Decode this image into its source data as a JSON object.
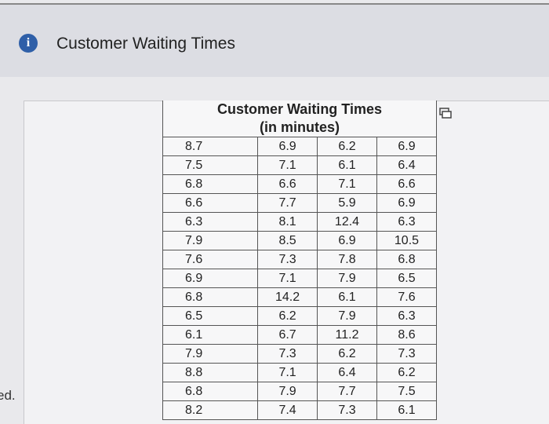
{
  "header": {
    "icon": "i",
    "title": "Customer Waiting Times"
  },
  "side_text": "ed.",
  "table": {
    "title": "Customer Waiting Times",
    "subtitle": "(in minutes)",
    "rows": [
      [
        8.7,
        6.9,
        6.2,
        6.9
      ],
      [
        7.5,
        7.1,
        6.1,
        6.4
      ],
      [
        6.8,
        6.6,
        7.1,
        6.6
      ],
      [
        6.6,
        7.7,
        5.9,
        6.9
      ],
      [
        6.3,
        8.1,
        12.4,
        6.3
      ],
      [
        7.9,
        8.5,
        6.9,
        10.5
      ],
      [
        7.6,
        7.3,
        7.8,
        6.8
      ],
      [
        6.9,
        7.1,
        7.9,
        6.5
      ],
      [
        6.8,
        14.2,
        6.1,
        7.6
      ],
      [
        6.5,
        6.2,
        7.9,
        6.3
      ],
      [
        6.1,
        6.7,
        11.2,
        8.6
      ],
      [
        7.9,
        7.3,
        6.2,
        7.3
      ],
      [
        8.8,
        7.1,
        6.4,
        6.2
      ],
      [
        6.8,
        7.9,
        7.7,
        7.5
      ],
      [
        8.2,
        7.4,
        7.3,
        6.1
      ]
    ]
  }
}
